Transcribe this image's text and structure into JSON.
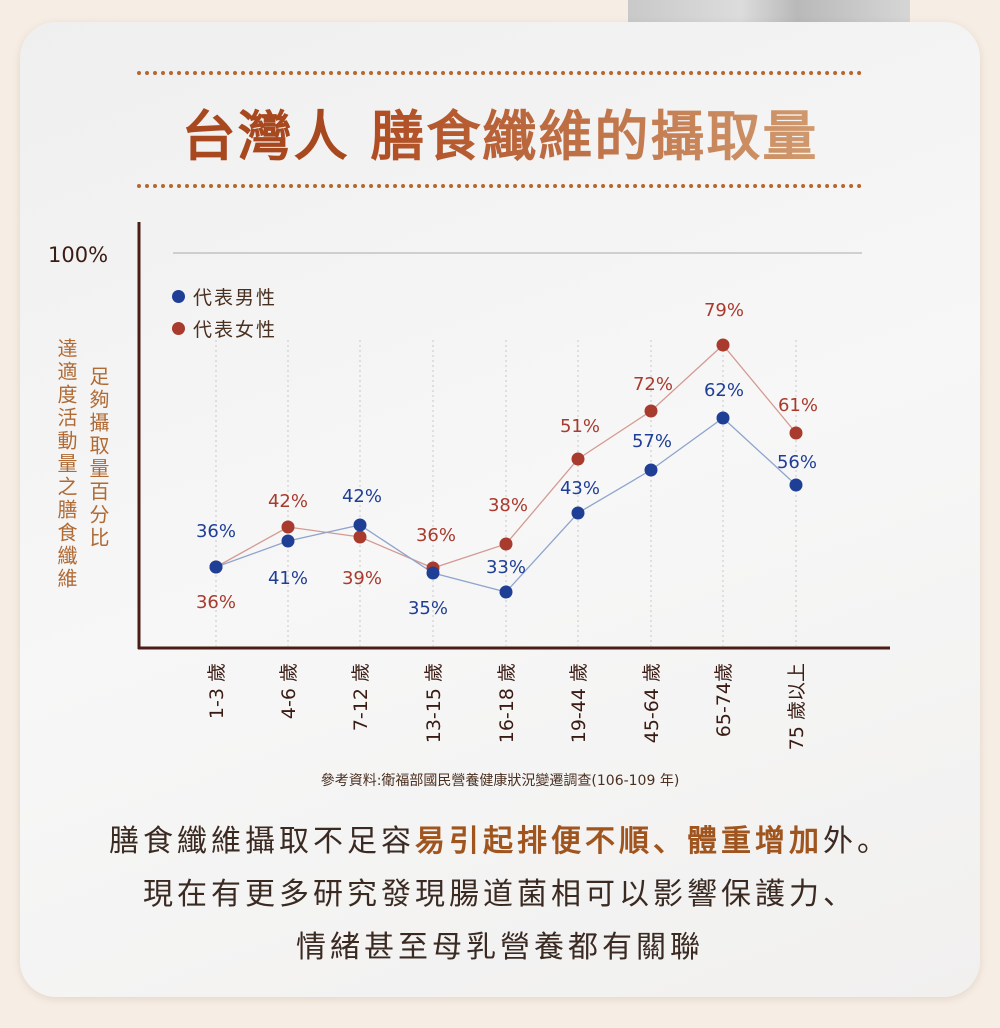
{
  "title": {
    "part1": "台灣人",
    "part2": "膳食纖維的攝取量"
  },
  "colors": {
    "male": "#1f3f96",
    "female": "#a83a2e",
    "axis": "#4a1e16"
  },
  "chart_data": {
    "type": "line",
    "title": "台灣人 膳食纖維的攝取量",
    "ylabel_top": "100%",
    "ylabel_col1": "達適度活動量之膳食纖維",
    "ylabel_col2": "足夠攝取量百分比",
    "categories": [
      "1-3 歲",
      "4-6 歲",
      "7-12 歲",
      "13-15 歲",
      "16-18 歲",
      "19-44 歲",
      "45-64 歲",
      "65-74歲",
      "75 歲以上"
    ],
    "series": [
      {
        "name": "代表男性",
        "values": [
          36,
          41,
          42,
          35,
          33,
          43,
          57,
          62,
          56
        ],
        "labels": [
          "36%",
          "41%",
          "42%",
          "35%",
          "33%",
          "43%",
          "57%",
          "62%",
          "56%"
        ]
      },
      {
        "name": "代表女性",
        "values": [
          36,
          42,
          39,
          36,
          38,
          51,
          72,
          79,
          61
        ],
        "labels": [
          "36%",
          "42%",
          "39%",
          "36%",
          "38%",
          "51%",
          "72%",
          "79%",
          "61%"
        ]
      }
    ],
    "ylim": [
      0,
      100
    ],
    "legend": "top-left"
  },
  "source": "參考資料:衛福部國民營養健康狀況變遷調查(106-109 年)",
  "body": {
    "l1a": "膳食纖維攝取不足容",
    "l1b": "易引起排便不順、體重增加",
    "l1c": "外。",
    "l2": "現在有更多研究發現腸道菌相可以影響保護力、",
    "l3": "情緒甚至母乳營養都有關聯"
  }
}
